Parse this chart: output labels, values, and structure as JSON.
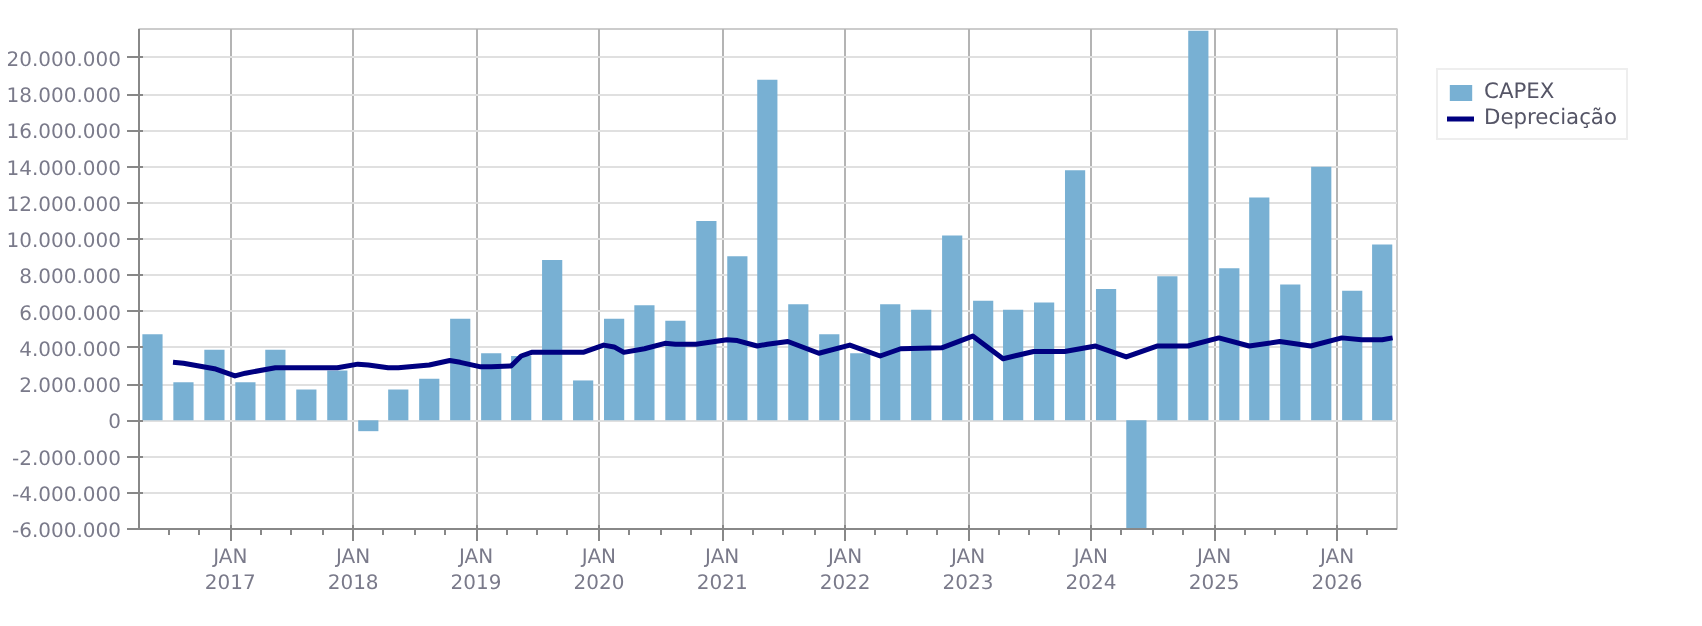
{
  "chart_data": {
    "type": "bar",
    "x": [
      "2016-05-15",
      "2016-08-15",
      "2016-11-15",
      "2017-02-15",
      "2017-05-15",
      "2017-08-15",
      "2017-11-15",
      "2018-02-15",
      "2018-05-15",
      "2018-08-15",
      "2018-11-15",
      "2019-02-15",
      "2019-05-15",
      "2019-08-15",
      "2019-11-15",
      "2020-02-15",
      "2020-05-15",
      "2020-08-15",
      "2020-11-15",
      "2021-02-15",
      "2021-05-15",
      "2021-08-15",
      "2021-11-15",
      "2022-02-15",
      "2022-05-15",
      "2022-08-15",
      "2022-11-15",
      "2023-02-15",
      "2023-05-15",
      "2023-08-15",
      "2023-11-15",
      "2024-02-15",
      "2024-05-15",
      "2024-08-15",
      "2024-11-15",
      "2025-02-15",
      "2025-05-15",
      "2025-08-15",
      "2025-11-15",
      "2026-02-15",
      "2026-05-15"
    ],
    "series": [
      {
        "name": "CAPEX",
        "color": "#78b0d3",
        "values": [
          4750000,
          2100000,
          3900000,
          2100000,
          3900000,
          1700000,
          2750000,
          -600000,
          1700000,
          2300000,
          5600000,
          3700000,
          3550000,
          8850000,
          2200000,
          5600000,
          6350000,
          5500000,
          11000000,
          9050000,
          18800000,
          6400000,
          4750000,
          3700000,
          6400000,
          6100000,
          10200000,
          6600000,
          6100000,
          6500000,
          13800000,
          7250000,
          -6000000,
          7950000,
          21500000,
          8400000,
          12300000,
          7500000,
          14000000,
          7150000,
          9700000
        ]
      },
      {
        "name": "Depreciação",
        "type": "line",
        "color": "#000080",
        "x": [
          "2016-07",
          "2016-08",
          "2016-11",
          "2017-01",
          "2017-02",
          "2017-05",
          "2017-11",
          "2018-01",
          "2018-02",
          "2018-04",
          "2018-05",
          "2018-08",
          "2018-10",
          "2018-11",
          "2019-01",
          "2019-02",
          "2019-04",
          "2019-05",
          "2019-06",
          "2019-11",
          "2020-01",
          "2020-02",
          "2020-03",
          "2020-05",
          "2020-07",
          "2020-08",
          "2020-10",
          "2021-01",
          "2021-02",
          "2021-04",
          "2021-05",
          "2021-07",
          "2021-10",
          "2022-01",
          "2022-04",
          "2022-06",
          "2022-10",
          "2023-01",
          "2023-04",
          "2023-07",
          "2023-10",
          "2024-01",
          "2024-04",
          "2024-07",
          "2024-10",
          "2025-01",
          "2025-04",
          "2025-07",
          "2025-10",
          "2026-01",
          "2026-03",
          "2026-05",
          "2026-06"
        ],
        "values": [
          3200000,
          3150000,
          2850000,
          2450000,
          2600000,
          2900000,
          2900000,
          3100000,
          3050000,
          2900000,
          2900000,
          3050000,
          3300000,
          3200000,
          2950000,
          2950000,
          3000000,
          3550000,
          3750000,
          3750000,
          4150000,
          4050000,
          3750000,
          3950000,
          4250000,
          4200000,
          4200000,
          4450000,
          4400000,
          4100000,
          4200000,
          4350000,
          3700000,
          4150000,
          3550000,
          3950000,
          4000000,
          4650000,
          3400000,
          3800000,
          3800000,
          4100000,
          3500000,
          4100000,
          4100000,
          4550000,
          4100000,
          4350000,
          4100000,
          4550000,
          4450000,
          4450000,
          4550000
        ]
      }
    ],
    "xlim": [
      "2016-04-05",
      "2026-06-28"
    ],
    "xticks": [
      {
        "value": "2016-07-01",
        "label": null
      },
      {
        "value": "2016-10-01",
        "label": null
      },
      {
        "value": "2017-01-01",
        "label": "JAN\n2017"
      },
      {
        "value": "2017-04-01",
        "label": null
      },
      {
        "value": "2017-07-01",
        "label": null
      },
      {
        "value": "2017-10-01",
        "label": null
      },
      {
        "value": "2018-01-01",
        "label": "JAN\n2018"
      },
      {
        "value": "2018-04-01",
        "label": null
      },
      {
        "value": "2018-07-01",
        "label": null
      },
      {
        "value": "2018-10-01",
        "label": null
      },
      {
        "value": "2019-01-01",
        "label": "JAN\n2019"
      },
      {
        "value": "2019-04-01",
        "label": null
      },
      {
        "value": "2019-07-01",
        "label": null
      },
      {
        "value": "2019-10-01",
        "label": null
      },
      {
        "value": "2020-01-01",
        "label": "JAN\n2020"
      },
      {
        "value": "2020-04-01",
        "label": null
      },
      {
        "value": "2020-07-01",
        "label": null
      },
      {
        "value": "2020-10-01",
        "label": null
      },
      {
        "value": "2021-01-01",
        "label": "JAN\n2021"
      },
      {
        "value": "2021-04-01",
        "label": null
      },
      {
        "value": "2021-07-01",
        "label": null
      },
      {
        "value": "2021-10-01",
        "label": null
      },
      {
        "value": "2022-01-01",
        "label": "JAN\n2022"
      },
      {
        "value": "2022-04-01",
        "label": null
      },
      {
        "value": "2022-07-01",
        "label": null
      },
      {
        "value": "2022-10-01",
        "label": null
      },
      {
        "value": "2023-01-01",
        "label": "JAN\n2023"
      },
      {
        "value": "2023-04-01",
        "label": null
      },
      {
        "value": "2023-07-01",
        "label": null
      },
      {
        "value": "2023-10-01",
        "label": null
      },
      {
        "value": "2024-01-01",
        "label": "JAN\n2024"
      },
      {
        "value": "2024-04-01",
        "label": null
      },
      {
        "value": "2024-07-01",
        "label": null
      },
      {
        "value": "2024-10-01",
        "label": null
      },
      {
        "value": "2025-01-01",
        "label": "JAN\n2025"
      },
      {
        "value": "2025-04-01",
        "label": null
      },
      {
        "value": "2025-07-01",
        "label": null
      },
      {
        "value": "2025-10-01",
        "label": null
      },
      {
        "value": "2026-01-01",
        "label": "JAN\n2026"
      },
      {
        "value": "2026-04-01",
        "label": null
      }
    ],
    "ylim": [
      -6000000,
      21600000
    ],
    "yticks": [
      {
        "value": -6000000,
        "label": "-6.000.000"
      },
      {
        "value": -4000000,
        "label": "-4.000.000"
      },
      {
        "value": -2000000,
        "label": "-2.000.000"
      },
      {
        "value": 0,
        "label": "0"
      },
      {
        "value": 2000000,
        "label": "2.000.000"
      },
      {
        "value": 4000000,
        "label": "4.000.000"
      },
      {
        "value": 6000000,
        "label": "6.000.000"
      },
      {
        "value": 8000000,
        "label": "8.000.000"
      },
      {
        "value": 10000000,
        "label": "10.000.000"
      },
      {
        "value": 12000000,
        "label": "12.000.000"
      },
      {
        "value": 14000000,
        "label": "14.000.000"
      },
      {
        "value": 16000000,
        "label": "16.000.000"
      },
      {
        "value": 18000000,
        "label": "18.000.000"
      },
      {
        "value": 20000000,
        "label": "20.000.000"
      }
    ],
    "grid": true,
    "legend": "top right"
  }
}
